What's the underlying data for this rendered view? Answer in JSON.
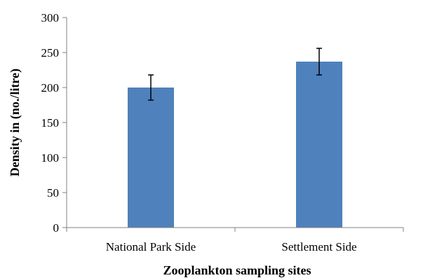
{
  "chart_data": {
    "type": "bar",
    "title": "",
    "xlabel": "Zooplankton sampling sites",
    "ylabel": "Density in (no./litre)",
    "categories": [
      "National Park Side",
      "Settlement Side"
    ],
    "values": [
      200,
      237
    ],
    "error": [
      18,
      19
    ],
    "ylim": [
      0,
      300
    ],
    "yticks": [
      0,
      50,
      100,
      150,
      200,
      250,
      300
    ],
    "bar_color": "#4f81bd",
    "grid": false,
    "legend": "none"
  }
}
